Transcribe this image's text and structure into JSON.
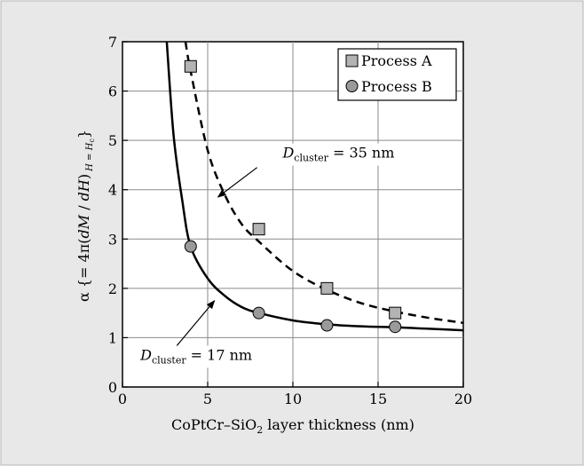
{
  "chart_data": {
    "type": "scatter",
    "xlabel": "CoPtCr–SiO2 layer thickness (nm)",
    "xlabel_parts": {
      "main": "CoPtCr–SiO",
      "sub": "2",
      "rest": " layer thickness (nm)"
    },
    "ylabel": "α {= 4π(dM / dH) H = Hc}",
    "ylabel_parts": {
      "pre": "α {= 4π(",
      "dM": "dM",
      "slash": " / ",
      "dH": "dH",
      "close": ")",
      "sub_h": "H",
      "sub_eq": " = ",
      "sub_Hc": "H",
      "sub_c": "c",
      "end": "}"
    },
    "xlim": [
      0,
      20
    ],
    "ylim": [
      0,
      7
    ],
    "xticks": [
      0,
      5,
      10,
      15,
      20
    ],
    "yticks": [
      0,
      1,
      2,
      3,
      4,
      5,
      6,
      7
    ],
    "xtick_labels": [
      "0",
      "5",
      "10",
      "15",
      "20"
    ],
    "ytick_labels": [
      "0",
      "1",
      "2",
      "3",
      "4",
      "5",
      "6",
      "7"
    ],
    "grid": true,
    "legend_position": "top-right",
    "series": [
      {
        "name": "Process A",
        "marker": "square",
        "color": "#b3b3b3",
        "points": [
          {
            "x": 4,
            "y": 6.5
          },
          {
            "x": 8,
            "y": 3.2
          },
          {
            "x": 12,
            "y": 2.0
          },
          {
            "x": 16,
            "y": 1.5
          }
        ]
      },
      {
        "name": "Process B",
        "marker": "circle",
        "color": "#9a9a9a",
        "points": [
          {
            "x": 4,
            "y": 2.85
          },
          {
            "x": 8,
            "y": 1.5
          },
          {
            "x": 12,
            "y": 1.25
          },
          {
            "x": 16,
            "y": 1.22
          }
        ]
      }
    ],
    "curves": [
      {
        "name": "35 nm",
        "style": "dashed",
        "points": [
          {
            "x": 3.7,
            "y": 7.0
          },
          {
            "x": 4,
            "y": 6.4
          },
          {
            "x": 5,
            "y": 4.8
          },
          {
            "x": 6,
            "y": 3.9
          },
          {
            "x": 7,
            "y": 3.3
          },
          {
            "x": 8,
            "y": 2.95
          },
          {
            "x": 10,
            "y": 2.35
          },
          {
            "x": 12,
            "y": 1.97
          },
          {
            "x": 14,
            "y": 1.7
          },
          {
            "x": 16,
            "y": 1.53
          },
          {
            "x": 18,
            "y": 1.4
          },
          {
            "x": 20,
            "y": 1.3
          }
        ]
      },
      {
        "name": "17 nm",
        "style": "solid",
        "points": [
          {
            "x": 2.6,
            "y": 7.0
          },
          {
            "x": 3,
            "y": 5.1
          },
          {
            "x": 3.5,
            "y": 3.8
          },
          {
            "x": 4,
            "y": 2.85
          },
          {
            "x": 5,
            "y": 2.2
          },
          {
            "x": 6,
            "y": 1.85
          },
          {
            "x": 7,
            "y": 1.62
          },
          {
            "x": 8,
            "y": 1.5
          },
          {
            "x": 10,
            "y": 1.35
          },
          {
            "x": 12,
            "y": 1.27
          },
          {
            "x": 14,
            "y": 1.23
          },
          {
            "x": 16,
            "y": 1.21
          },
          {
            "x": 18,
            "y": 1.18
          },
          {
            "x": 20,
            "y": 1.15
          }
        ]
      }
    ],
    "annotations": [
      {
        "d": "D",
        "sub": "cluster",
        "rest": " = 35 nm",
        "text_at": {
          "x": 9.4,
          "y": 4.65
        },
        "arrow_from": {
          "x": 7.9,
          "y": 4.45
        },
        "arrow_to": {
          "x": 5.6,
          "y": 3.85
        }
      },
      {
        "d": "D",
        "sub": "cluster",
        "rest": " = 17 nm",
        "text_at": {
          "x": 1.05,
          "y": 0.55
        },
        "arrow_from": {
          "x": 3.1,
          "y": 0.8
        },
        "arrow_to": {
          "x": 5.4,
          "y": 1.75
        }
      }
    ]
  }
}
